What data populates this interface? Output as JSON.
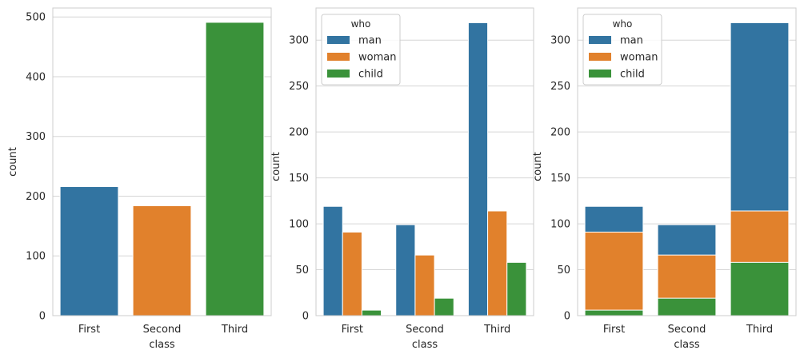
{
  "chart_data": [
    {
      "type": "bar",
      "categories": [
        "First",
        "Second",
        "Third"
      ],
      "values": [
        216,
        184,
        491
      ],
      "xlabel": "class",
      "ylabel": "count",
      "ylim": [
        0,
        515
      ],
      "yticks": [
        0,
        100,
        200,
        300,
        400,
        500
      ],
      "grid": true,
      "bar_colors": [
        "#3274a1",
        "#e1812c",
        "#3a923a"
      ]
    },
    {
      "type": "bar",
      "mode": "grouped",
      "categories": [
        "First",
        "Second",
        "Third"
      ],
      "series": [
        {
          "name": "man",
          "values": [
            119,
            99,
            319
          ],
          "color": "#3274a1"
        },
        {
          "name": "woman",
          "values": [
            91,
            66,
            114
          ],
          "color": "#e1812c"
        },
        {
          "name": "child",
          "values": [
            6,
            19,
            58
          ],
          "color": "#3a923a"
        }
      ],
      "legend_title": "who",
      "legend_position": "top-left",
      "xlabel": "class",
      "ylabel": "count",
      "ylim": [
        0,
        335
      ],
      "yticks": [
        0,
        50,
        100,
        150,
        200,
        250,
        300
      ],
      "grid": true
    },
    {
      "type": "bar",
      "mode": "stacked",
      "categories": [
        "First",
        "Second",
        "Third"
      ],
      "series": [
        {
          "name": "man",
          "values": [
            119,
            99,
            319
          ],
          "color": "#3274a1"
        },
        {
          "name": "woman",
          "values": [
            91,
            66,
            114
          ],
          "color": "#e1812c"
        },
        {
          "name": "child",
          "values": [
            6,
            19,
            58
          ],
          "color": "#3a923a"
        }
      ],
      "legend_title": "who",
      "legend_position": "top-left",
      "xlabel": "class",
      "ylabel": "count",
      "ylim": [
        0,
        335
      ],
      "yticks": [
        0,
        50,
        100,
        150,
        200,
        250,
        300
      ],
      "grid": true
    }
  ]
}
